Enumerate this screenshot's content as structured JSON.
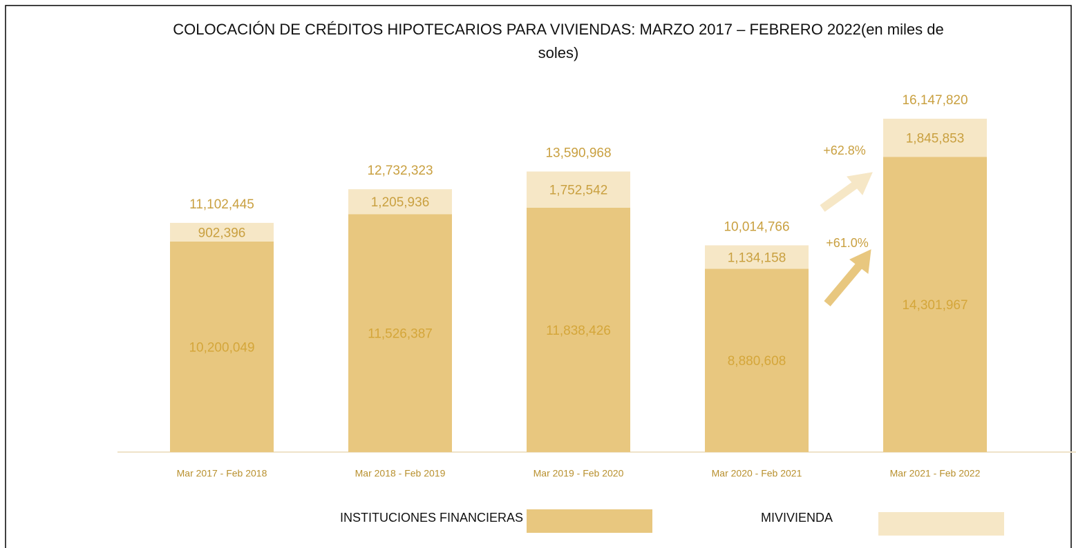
{
  "chart_data": {
    "type": "stacked_bar",
    "title": "COLOCACIÓN DE CRÉDITOS HIPOTECARIOS PARA VIVIENDAS: MARZO 2017 – FEBRERO 2022(en miles de soles)",
    "categories": [
      "Mar 2017 - Feb 2018",
      "Mar 2018 - Feb 2019",
      "Mar 2019 - Feb 2020",
      "Mar 2020 - Feb 2021",
      "Mar 2021 - Feb 2022"
    ],
    "series": [
      {
        "name": "INSTITUCIONES FINANCIERAS",
        "color": "#e8c77f",
        "label_color": "#d4a63a",
        "values": [
          10200049,
          11526387,
          11838426,
          8880608,
          14301967
        ],
        "value_labels": [
          "10,200,049",
          "11,526,387",
          "11,838,426",
          "8,880,608",
          "14,301,967"
        ]
      },
      {
        "name": "MIVIVIENDA",
        "color": "#f6e7c6",
        "label_color": "#c9a040",
        "values": [
          902396,
          1205936,
          1752542,
          1134158,
          1845853
        ],
        "value_labels": [
          "902,396",
          "1,205,936",
          "1,752,542",
          "1,134,158",
          "1,845,853"
        ]
      }
    ],
    "totals": [
      11102445,
      12732323,
      13590968,
      10014766,
      16147820
    ],
    "total_labels": [
      "11,102,445",
      "12,732,323",
      "13,590,968",
      "10,014,766",
      "16,147,820"
    ],
    "annotations": [
      "+62.8%",
      "+61.0%"
    ]
  }
}
